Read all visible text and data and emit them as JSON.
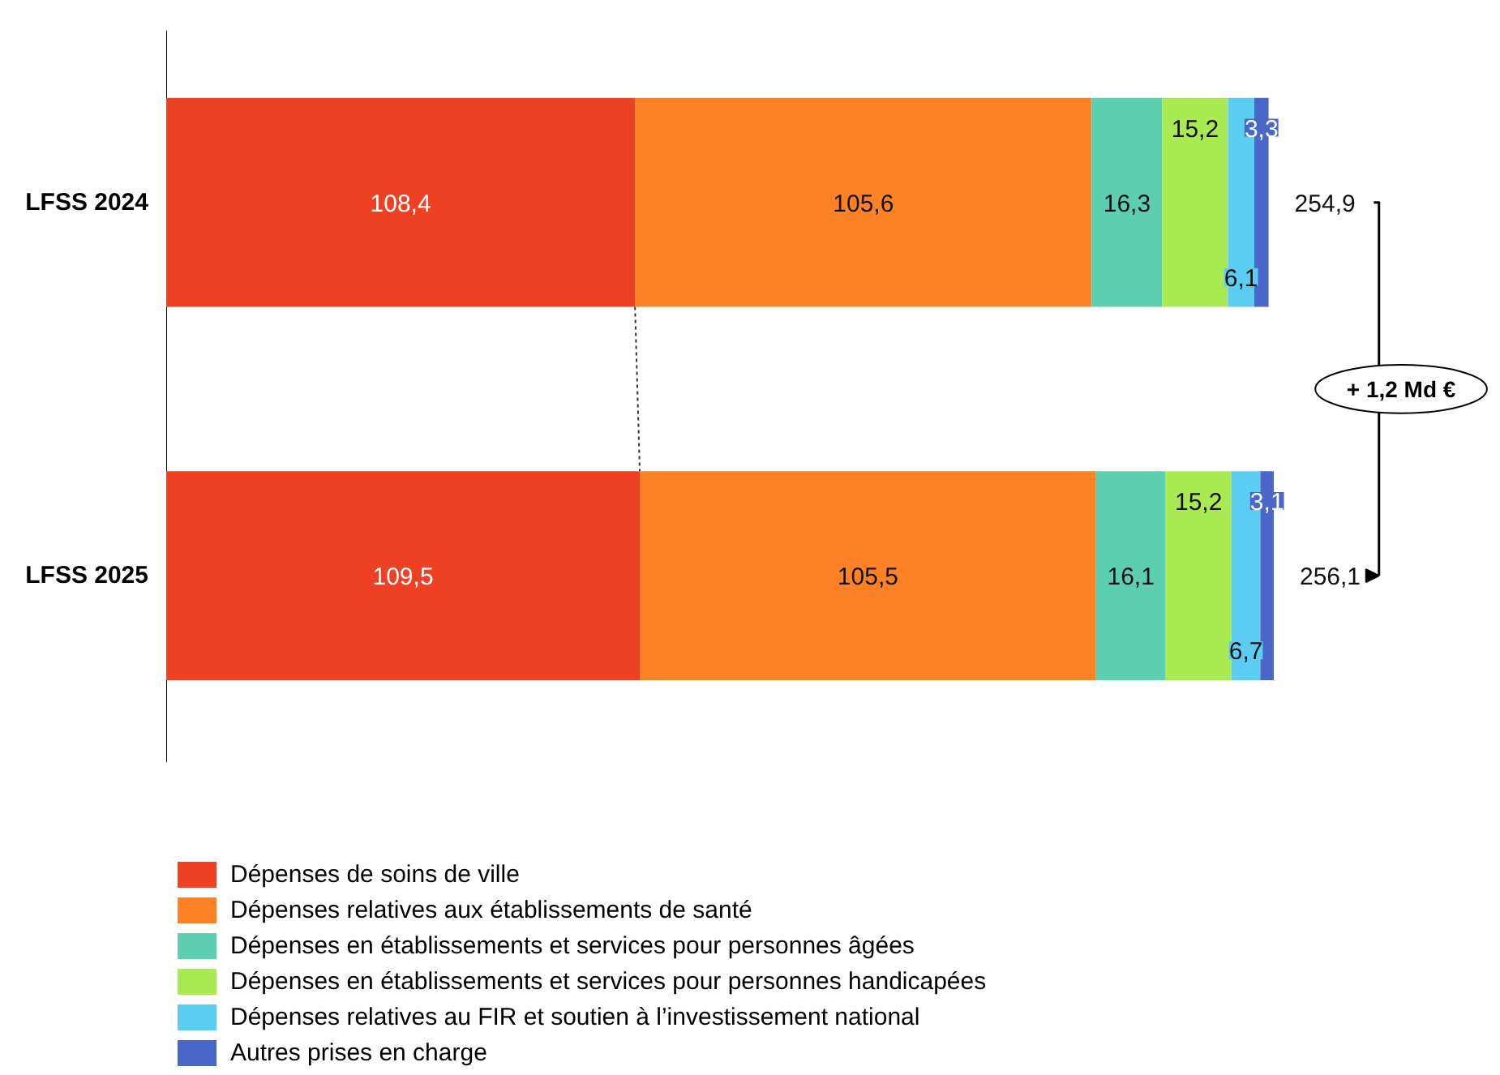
{
  "chart_data": {
    "type": "bar",
    "orientation": "horizontal",
    "stacked": true,
    "categories": [
      "LFSS 2024",
      "LFSS 2025"
    ],
    "series": [
      {
        "name": "Dépenses de soins de ville",
        "color": "#ee4124",
        "values": [
          108.4,
          109.5
        ],
        "value_labels": [
          "108,4",
          "109,5"
        ]
      },
      {
        "name": "Dépenses relatives aux établissements de santé",
        "color": "#fd8226",
        "values": [
          105.6,
          105.5
        ],
        "value_labels": [
          "105,6",
          "105,5"
        ]
      },
      {
        "name": "Dépenses en établissements et services pour personnes âgées",
        "color": "#5ccfb0",
        "values": [
          16.3,
          16.1
        ],
        "value_labels": [
          "16,3",
          "16,1"
        ]
      },
      {
        "name": "Dépenses en établissements et services pour personnes handicapées",
        "color": "#a9ea52",
        "values": [
          15.2,
          15.2
        ],
        "value_labels": [
          "15,2",
          "15,2"
        ]
      },
      {
        "name": "Dépenses relatives au FIR et soutien à l’investissement national",
        "color": "#5ccdf2",
        "values": [
          6.1,
          6.7
        ],
        "value_labels": [
          "6,1",
          "6,7"
        ]
      },
      {
        "name": "Autres prises en charge",
        "color": "#4a66c8",
        "values": [
          3.3,
          3.1
        ],
        "value_labels": [
          "3,3",
          "3,1"
        ]
      }
    ],
    "totals": [
      "254,9",
      "256,1"
    ],
    "annotations": [
      "+ 1,2 Md €"
    ],
    "grid": false,
    "legend": "bottom",
    "tick_labels": "y"
  }
}
